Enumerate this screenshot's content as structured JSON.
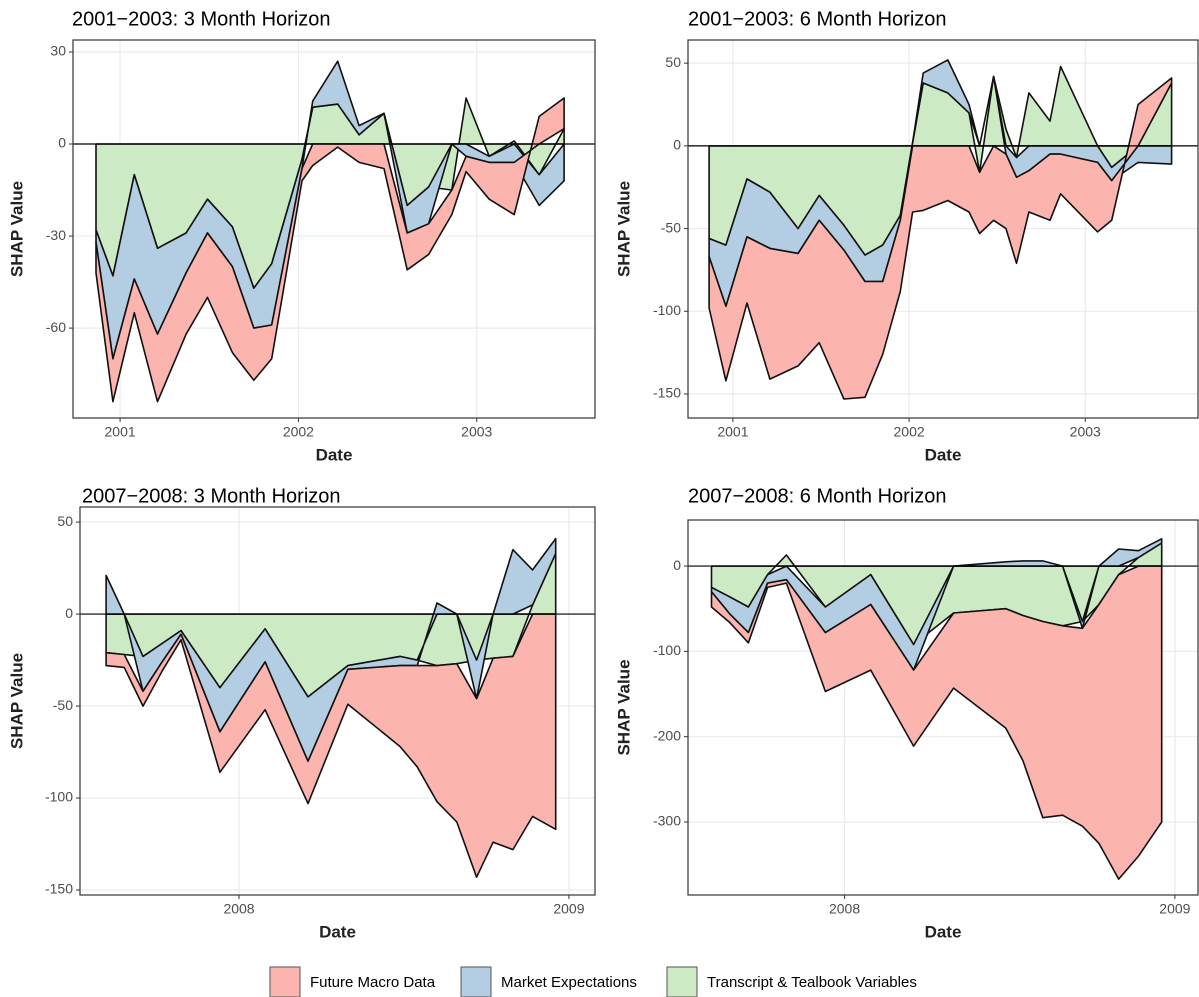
{
  "chart_data": [
    {
      "type": "area",
      "title": "2001−2003: 3 Month Horizon",
      "xlabel": "Date",
      "ylabel": "SHAP Value",
      "x": [
        2000.865,
        2000.96,
        2001.08,
        2001.21,
        2001.37,
        2001.49,
        2001.63,
        2001.75,
        2001.85,
        2002.02,
        2002.08,
        2002.22,
        2002.34,
        2002.48,
        2002.61,
        2002.73,
        2002.86,
        2002.94,
        2003.07,
        2003.21,
        2003.35,
        2003.49
      ],
      "xlim": [
        2000.736,
        2003.663
      ],
      "xticks": [
        2001,
        2002,
        2003
      ],
      "ylim": [
        -89.3,
        33.9
      ],
      "yticks": [
        -60,
        -30,
        0,
        30
      ],
      "grid": true,
      "series": [
        {
          "name": "Future Macro Data",
          "color": "#fbb4ae",
          "values": [
            -10,
            -14,
            -11,
            -22,
            -20,
            -21,
            -28,
            -17,
            -11,
            -4,
            -7,
            -1,
            -6,
            -8,
            -12,
            -10,
            -8,
            -5,
            -12,
            -17,
            9,
            10
          ]
        },
        {
          "name": "Market Expectations",
          "color": "#b3cde3",
          "values": [
            -4,
            -27,
            -34,
            -28,
            -13,
            -11,
            -13,
            -13,
            -20,
            -3,
            2,
            14,
            3,
            0,
            -9,
            -12,
            0,
            -4,
            -2,
            -6,
            -10,
            -12
          ]
        },
        {
          "name": "Transcript & Tealbook Variables",
          "color": "#ccebc5",
          "values": [
            -28,
            -43,
            -10,
            -34,
            -29,
            -18,
            -27,
            -47,
            -39,
            -5,
            12,
            13,
            3,
            10,
            -20,
            -14,
            -15,
            15,
            -4,
            1,
            -10,
            5
          ]
        }
      ]
    },
    {
      "type": "area",
      "title": "2001−2003: 6 Month Horizon",
      "xlabel": "Date",
      "ylabel": "SHAP Value",
      "x": [
        2000.865,
        2000.96,
        2001.08,
        2001.21,
        2001.37,
        2001.49,
        2001.63,
        2001.75,
        2001.85,
        2001.95,
        2002.02,
        2002.08,
        2002.22,
        2002.34,
        2002.4,
        2002.48,
        2002.55,
        2002.61,
        2002.68,
        2002.8,
        2002.86,
        2003.07,
        2003.15,
        2003.3,
        2003.49
      ],
      "xlim": [
        2000.745,
        2003.64
      ],
      "xticks": [
        2001,
        2002,
        2003
      ],
      "ylim": [
        -164.5,
        64
      ],
      "yticks": [
        -150,
        -100,
        -50,
        0,
        50
      ],
      "grid": true,
      "series": [
        {
          "color": "#fbb4ae",
          "values": [
            -31,
            -45,
            -40,
            -79,
            -68,
            -74,
            -90,
            -70,
            -44,
            -43,
            -40,
            -39,
            -33,
            -40,
            -37,
            -45,
            -45,
            -52,
            -25,
            -40,
            -24,
            -42,
            -24,
            25,
            3
          ]
        },
        {
          "color": "#b3cde3",
          "values": [
            -11,
            -37,
            -35,
            -34,
            -15,
            -15,
            -15,
            -16,
            -22,
            -3,
            0,
            6,
            20,
            5,
            0,
            0,
            -5,
            -12,
            -15,
            -5,
            -5,
            -10,
            -8,
            -10,
            -11
          ]
        },
        {
          "color": "#ccebc5",
          "values": [
            -56,
            -60,
            -20,
            -28,
            -50,
            -30,
            -48,
            -66,
            -60,
            -42,
            2,
            38,
            32,
            20,
            -16,
            42,
            10,
            -7,
            32,
            15,
            48,
            0,
            -13,
            0,
            38
          ]
        }
      ]
    },
    {
      "type": "area",
      "title": "2007−2008: 3 Month Horizon",
      "xlabel": "Date",
      "ylabel": "SHAP Value",
      "x": [
        2007.597,
        2007.652,
        2007.709,
        2007.767,
        2007.824,
        2007.942,
        2008.079,
        2008.209,
        2008.33,
        2008.488,
        2008.54,
        2008.6,
        2008.66,
        2008.72,
        2008.77,
        2008.83,
        2008.89,
        2008.96
      ],
      "xlim": [
        2007.518,
        2009.079
      ],
      "xticks": [
        2008,
        2009
      ],
      "ylim": [
        -152.7,
        58.2
      ],
      "yticks": [
        -150,
        -100,
        -50,
        0,
        50
      ],
      "grid": true,
      "series": [
        {
          "color": "#fbb4ae",
          "values": [
            -7,
            -7,
            -8,
            -5,
            -3,
            -22,
            -26,
            -23,
            -19,
            -44,
            -55,
            -74,
            -86,
            -97,
            -100,
            -105,
            -110,
            -117
          ]
        },
        {
          "color": "#b3cde3",
          "values": [
            21,
            0,
            -19,
            -10,
            -2,
            -24,
            -18,
            -35,
            -2,
            -5,
            -3,
            6,
            0,
            -21,
            0,
            35,
            19,
            8
          ]
        },
        {
          "color": "#ccebc5",
          "values": [
            -21,
            -22,
            -23,
            -16,
            -9,
            -40,
            -8,
            -45,
            -28,
            -23,
            -25,
            -28,
            -27,
            -25,
            -24,
            -23,
            5,
            33
          ]
        }
      ]
    },
    {
      "type": "area",
      "title": "2007−2008: 6 Month Horizon",
      "xlabel": "Date",
      "ylabel": "SHAP Value",
      "x": [
        2007.597,
        2007.652,
        2007.709,
        2007.767,
        2007.824,
        2007.942,
        2008.079,
        2008.209,
        2008.33,
        2008.488,
        2008.54,
        2008.6,
        2008.66,
        2008.72,
        2008.77,
        2008.83,
        2008.89,
        2008.96
      ],
      "xlim": [
        2007.526,
        2009.07
      ],
      "xticks": [
        2008,
        2009
      ],
      "ylim": [
        -385.6,
        54
      ],
      "yticks": [
        -300,
        -200,
        -100,
        0
      ],
      "grid": true,
      "series": [
        {
          "color": "#fbb4ae",
          "values": [
            -18,
            -10,
            -12,
            -5,
            -4,
            -69,
            -77,
            -89,
            -88,
            -140,
            -170,
            -230,
            -222,
            -232,
            -280,
            -357,
            -340,
            -300
          ]
        },
        {
          "color": "#b3cde3",
          "values": [
            -5,
            -20,
            -30,
            -10,
            -16,
            -30,
            -35,
            -30,
            0,
            5,
            6,
            6,
            0,
            -8,
            0,
            20,
            8,
            5
          ]
        },
        {
          "color": "#ccebc5",
          "values": [
            -25,
            -36,
            -48,
            -10,
            13,
            -48,
            -10,
            -92,
            -55,
            -50,
            -58,
            -65,
            -70,
            -65,
            -45,
            -10,
            10,
            27
          ]
        }
      ]
    }
  ]
}
